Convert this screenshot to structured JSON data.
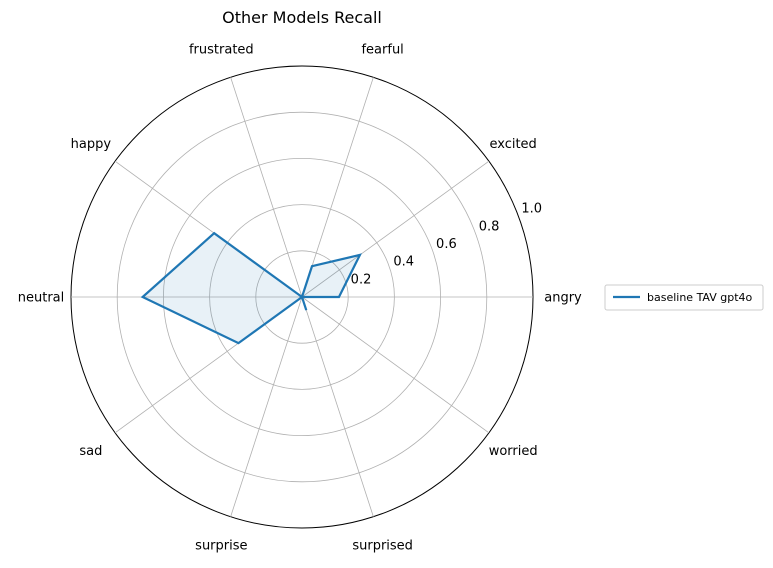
{
  "chart_data": {
    "type": "radar",
    "title": "Other Models Recall",
    "categories": [
      "angry",
      "excited",
      "fearful",
      "frustrated",
      "happy",
      "neutral",
      "sad",
      "surprise",
      "surprised",
      "worried"
    ],
    "series": [
      {
        "name": "baseline TAV gpt4o",
        "values": [
          0.16,
          0.31,
          0.14,
          0.0,
          0.47,
          0.69,
          0.34,
          0.0,
          0.06,
          0.0
        ],
        "color": "#1f77b4"
      }
    ],
    "rlim": [
      0,
      1.0
    ],
    "radial_ticks": [
      "0.2",
      "0.4",
      "0.6",
      "0.8",
      "1.0"
    ],
    "radial_tick_values": [
      0.2,
      0.4,
      0.6,
      0.8,
      1.0
    ],
    "grid": true,
    "legend_position": "right"
  }
}
